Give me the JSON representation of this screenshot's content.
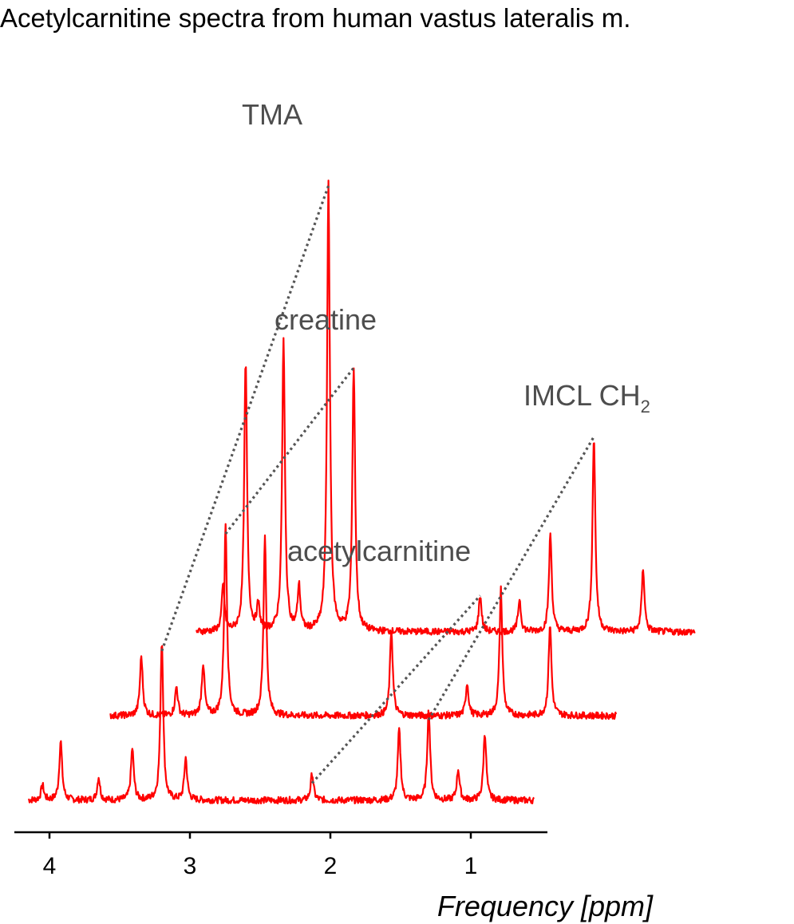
{
  "chart_data": {
    "type": "line",
    "title": "Acetylcarnitine spectra from human vastus lateralis m.",
    "xlabel": "Frequency [ppm]",
    "ylabel": "",
    "xlim": [
      4.25,
      0.5
    ],
    "x_ticks": [
      "4",
      "3",
      "2",
      "1"
    ],
    "y_axis_visible": false,
    "grid": false,
    "series_color": "#ff0000",
    "connector_color": "#555555",
    "annotation_color": "#4d4d4d",
    "annotations": [
      {
        "text": "TMA",
        "subscript": ""
      },
      {
        "text": "creatine",
        "subscript": ""
      },
      {
        "text": "IMCL CH",
        "subscript": "2"
      },
      {
        "text": "acetylcarnitine",
        "subscript": ""
      }
    ],
    "series": [
      {
        "range": [
          4.15,
          0.55
        ],
        "baseline": 0.0,
        "peaks": [
          {
            "ppm": 4.05,
            "height": 0.08
          },
          {
            "ppm": 3.92,
            "height": 0.31
          },
          {
            "ppm": 3.65,
            "height": 0.12
          },
          {
            "ppm": 3.41,
            "height": 0.27
          },
          {
            "ppm": 3.2,
            "height": 0.83
          },
          {
            "ppm": 3.03,
            "height": 0.22
          },
          {
            "ppm": 2.13,
            "height": 0.14
          },
          {
            "ppm": 1.51,
            "height": 0.37
          },
          {
            "ppm": 1.3,
            "height": 0.47
          },
          {
            "ppm": 1.09,
            "height": 0.16
          },
          {
            "ppm": 0.9,
            "height": 0.35
          }
        ]
      },
      {
        "range": [
          3.85,
          0.25
        ],
        "baseline": 0.0,
        "peaks": [
          {
            "ppm": 3.63,
            "height": 0.31
          },
          {
            "ppm": 3.38,
            "height": 0.15
          },
          {
            "ppm": 3.19,
            "height": 0.27
          },
          {
            "ppm": 3.03,
            "height": 1.0
          },
          {
            "ppm": 2.75,
            "height": 0.94
          },
          {
            "ppm": 1.85,
            "height": 0.45
          },
          {
            "ppm": 1.31,
            "height": 0.17
          },
          {
            "ppm": 1.07,
            "height": 0.66
          },
          {
            "ppm": 0.72,
            "height": 0.48
          }
        ]
      },
      {
        "range": [
          3.55,
          0.0
        ],
        "baseline": 0.0,
        "peaks": [
          {
            "ppm": 3.36,
            "height": 0.24
          },
          {
            "ppm": 3.2,
            "height": 1.4
          },
          {
            "ppm": 3.11,
            "height": 0.13
          },
          {
            "ppm": 2.93,
            "height": 1.52
          },
          {
            "ppm": 2.82,
            "height": 0.23
          },
          {
            "ppm": 2.61,
            "height": 2.33
          },
          {
            "ppm": 2.43,
            "height": 1.38
          },
          {
            "ppm": 1.53,
            "height": 0.19
          },
          {
            "ppm": 1.25,
            "height": 0.17
          },
          {
            "ppm": 1.03,
            "height": 0.51
          },
          {
            "ppm": 0.72,
            "height": 1.02
          },
          {
            "ppm": 0.37,
            "height": 0.33
          }
        ]
      }
    ]
  }
}
